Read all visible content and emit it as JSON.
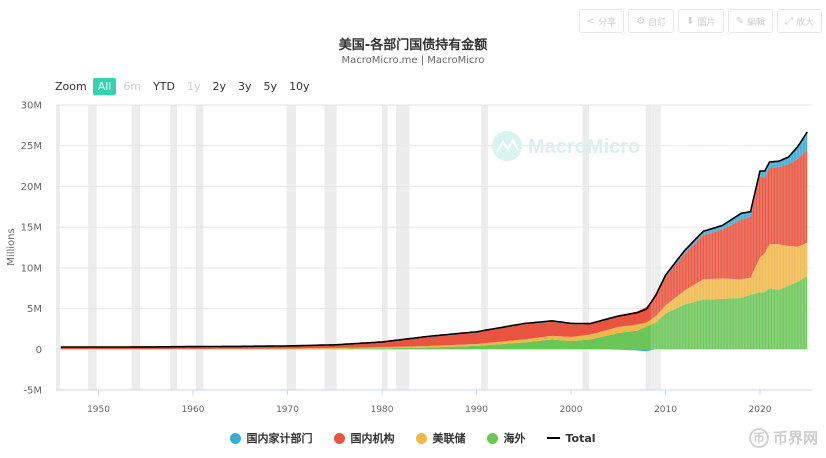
{
  "toolbar": {
    "share_label": "分享",
    "custom_label": "自訂",
    "image_label": "圖片",
    "edit_label": "編輯",
    "expand_label": "放大"
  },
  "zoom": {
    "label": "Zoom",
    "options": [
      "All",
      "6m",
      "YTD",
      "1y",
      "2y",
      "3y",
      "5y",
      "10y"
    ],
    "active": "All",
    "disabled": [
      "6m",
      "1y"
    ]
  },
  "watermark": "MacroMicro",
  "corner_logo": "币界网",
  "colors": {
    "domestic": "#3fa9d6",
    "institutions": "#e8543f",
    "fed": "#f0b84b",
    "foreign": "#6cc558",
    "total": "#000000",
    "recession": "#ececec"
  },
  "chart_data": {
    "type": "area",
    "title": "美国-各部门国债持有金额",
    "subtitle": "MacroMicro.me | MacroMicro",
    "ylabel": "Millions",
    "xlabel": "",
    "ylim": [
      -5000000,
      30000000
    ],
    "xlim": [
      1945.5,
      2025.5
    ],
    "yticks": [
      "-5M",
      "0",
      "5M",
      "10M",
      "15M",
      "20M",
      "25M",
      "30M"
    ],
    "xticks": [
      "1950",
      "1960",
      "1970",
      "1980",
      "1990",
      "2000",
      "2010",
      "2020"
    ],
    "legend_position": "bottom",
    "recessions": [
      [
        1945.5,
        1945.9
      ],
      [
        1948.9,
        1949.8
      ],
      [
        1953.5,
        1954.4
      ],
      [
        1957.6,
        1958.3
      ],
      [
        1960.3,
        1961.1
      ],
      [
        1969.9,
        1970.9
      ],
      [
        1973.9,
        1975.2
      ],
      [
        1980.0,
        1980.6
      ],
      [
        1981.5,
        1982.9
      ],
      [
        1990.5,
        1991.2
      ],
      [
        2001.2,
        2001.9
      ],
      [
        2007.9,
        2009.5
      ]
    ],
    "x": [
      1946,
      1950,
      1955,
      1960,
      1965,
      1970,
      1975,
      1980,
      1985,
      1990,
      1995,
      1998,
      2000,
      2002,
      2005,
      2007,
      2008,
      2009,
      2010,
      2012,
      2014,
      2016,
      2018,
      2019,
      2020,
      2020.5,
      2021,
      2022,
      2023,
      2024,
      2025
    ],
    "series": [
      {
        "name": "海外",
        "values": [
          0.01,
          0.01,
          0.01,
          0.02,
          0.02,
          0.03,
          0.07,
          0.13,
          0.22,
          0.42,
          0.84,
          1.2,
          1.0,
          1.2,
          2.0,
          2.3,
          2.8,
          3.3,
          4.4,
          5.5,
          6.1,
          6.2,
          6.3,
          6.7,
          7.0,
          7.0,
          7.5,
          7.3,
          7.8,
          8.3,
          9.0
        ]
      },
      {
        "name": "美联储",
        "values": [
          0.02,
          0.02,
          0.02,
          0.03,
          0.04,
          0.06,
          0.09,
          0.12,
          0.18,
          0.23,
          0.37,
          0.45,
          0.51,
          0.6,
          0.74,
          0.74,
          0.5,
          0.8,
          1.0,
          1.7,
          2.5,
          2.5,
          2.3,
          2.1,
          4.3,
          4.8,
          5.4,
          5.6,
          4.9,
          4.3,
          4.1
        ]
      },
      {
        "name": "国内机构",
        "values": [
          0.19,
          0.2,
          0.21,
          0.23,
          0.26,
          0.28,
          0.35,
          0.6,
          1.1,
          1.4,
          1.85,
          1.72,
          1.55,
          1.3,
          1.4,
          1.6,
          1.9,
          2.6,
          3.5,
          4.5,
          5.4,
          6.0,
          7.3,
          7.5,
          10.0,
          9.3,
          9.4,
          9.5,
          10.0,
          10.8,
          11.4
        ]
      },
      {
        "name": "国内家计部门",
        "values": [
          0.06,
          0.05,
          0.05,
          0.05,
          0.04,
          0.04,
          0.04,
          0.05,
          0.1,
          0.1,
          0.1,
          0.12,
          0.12,
          0.05,
          -0.05,
          -0.15,
          -0.25,
          0.0,
          0.2,
          0.4,
          0.5,
          0.5,
          0.8,
          0.6,
          0.6,
          0.8,
          0.7,
          0.7,
          0.9,
          1.5,
          2.2
        ]
      }
    ],
    "total_name": "Total",
    "total": [
      0.28,
      0.28,
      0.29,
      0.33,
      0.36,
      0.41,
      0.55,
      0.9,
      1.6,
      2.15,
      3.16,
      3.49,
      3.18,
      3.15,
      4.09,
      4.49,
      4.95,
      6.7,
      9.1,
      12.1,
      14.5,
      15.2,
      16.7,
      16.9,
      21.9,
      21.9,
      23.0,
      23.1,
      23.6,
      24.9,
      26.7
    ]
  }
}
